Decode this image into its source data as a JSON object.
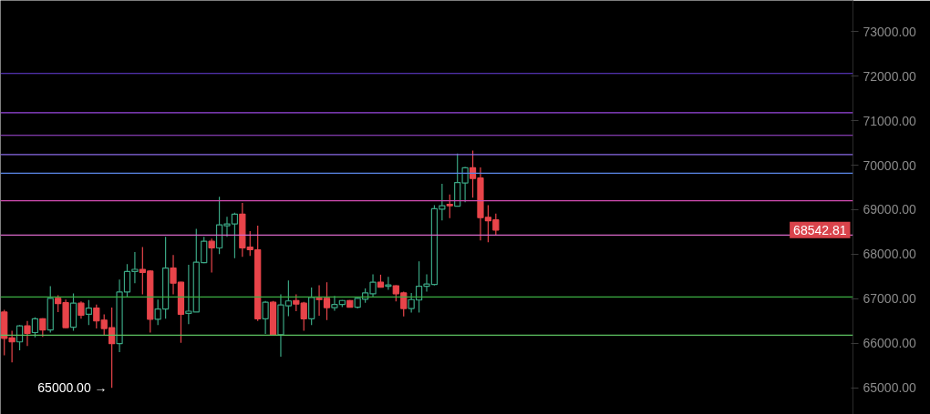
{
  "chart_data": {
    "type": "candlestick",
    "categories": [
      null,
      null,
      null,
      null,
      null,
      null,
      null,
      null,
      null,
      null,
      null,
      null,
      null,
      null,
      null,
      null,
      null,
      null,
      null,
      null,
      null,
      null,
      null,
      null,
      null,
      null,
      null,
      null,
      null,
      null,
      null,
      null,
      null,
      null,
      null,
      null,
      null,
      null,
      null,
      null,
      null,
      null,
      null,
      null,
      null,
      null,
      null,
      null,
      null,
      null,
      null,
      null,
      null,
      null,
      null,
      null,
      null,
      null,
      null,
      null,
      null,
      null,
      null,
      null,
      null,
      null,
      null,
      null,
      null,
      null,
      null,
      null,
      null,
      null,
      null,
      null,
      null,
      null,
      null,
      null,
      null,
      null,
      null,
      null,
      null,
      null,
      null,
      null,
      null,
      null,
      null,
      null,
      null,
      null,
      null,
      null,
      null,
      null,
      null,
      null,
      null,
      null,
      null,
      null,
      null,
      null,
      null,
      null,
      null,
      null,
      null
    ],
    "ohlc": [
      [
        66700,
        66750,
        65730,
        66110
      ],
      [
        66120,
        66280,
        65570,
        66030
      ],
      [
        66030,
        66410,
        65840,
        66390
      ],
      [
        66390,
        66500,
        65940,
        66220
      ],
      [
        66240,
        66580,
        66130,
        66550
      ],
      [
        66550,
        66560,
        66140,
        66300
      ],
      [
        66300,
        67280,
        66240,
        67010
      ],
      [
        67010,
        67080,
        66700,
        66890
      ],
      [
        66910,
        66980,
        66340,
        66350
      ],
      [
        66360,
        67120,
        66280,
        66900
      ],
      [
        66900,
        66940,
        66550,
        66630
      ],
      [
        66650,
        66970,
        66410,
        66790
      ],
      [
        66790,
        66870,
        66330,
        66500
      ],
      [
        66520,
        66650,
        66180,
        66330
      ],
      [
        66350,
        66800,
        65000,
        65990
      ],
      [
        65990,
        67430,
        65800,
        67150
      ],
      [
        67150,
        67780,
        67030,
        67610
      ],
      [
        67610,
        68050,
        67350,
        67660
      ],
      [
        67660,
        68160,
        67100,
        67590
      ],
      [
        67620,
        67640,
        66240,
        66540
      ],
      [
        66540,
        66980,
        66410,
        66770
      ],
      [
        66770,
        68390,
        66550,
        67690
      ],
      [
        67690,
        67980,
        67100,
        67350
      ],
      [
        67370,
        67380,
        66010,
        66650
      ],
      [
        66670,
        67760,
        66430,
        66720
      ],
      [
        66700,
        68570,
        66700,
        67820
      ],
      [
        67810,
        68390,
        67800,
        68290
      ],
      [
        68290,
        68350,
        67590,
        68140
      ],
      [
        68140,
        69290,
        68000,
        68660
      ],
      [
        68640,
        68840,
        68390,
        68680
      ],
      [
        68680,
        68930,
        67910,
        68900
      ],
      [
        68900,
        69150,
        67940,
        68140
      ],
      [
        68160,
        68520,
        67960,
        68100
      ],
      [
        68100,
        68640,
        66500,
        66550
      ],
      [
        66550,
        66950,
        66210,
        66920
      ],
      [
        66920,
        66950,
        66180,
        66190
      ],
      [
        66190,
        67100,
        65700,
        66860
      ],
      [
        66840,
        67410,
        66610,
        66950
      ],
      [
        66960,
        67100,
        66720,
        66880
      ],
      [
        66900,
        66930,
        66280,
        66550
      ],
      [
        66550,
        67250,
        66410,
        67030
      ],
      [
        67010,
        67300,
        66620,
        66980
      ],
      [
        67010,
        67370,
        66520,
        66800
      ],
      [
        66800,
        67060,
        66730,
        66870
      ],
      [
        66870,
        66970,
        66810,
        66960
      ],
      [
        66960,
        66970,
        66800,
        66810
      ],
      [
        66810,
        67020,
        66780,
        67010
      ],
      [
        66990,
        67230,
        66910,
        67130
      ],
      [
        67110,
        67550,
        67030,
        67370
      ],
      [
        67370,
        67540,
        67250,
        67260
      ],
      [
        67280,
        67490,
        67200,
        67310
      ],
      [
        67290,
        67300,
        66940,
        67110
      ],
      [
        67130,
        67160,
        66600,
        66780
      ],
      [
        66780,
        67130,
        66690,
        66980
      ],
      [
        66970,
        67840,
        66690,
        67280
      ],
      [
        67280,
        67550,
        67160,
        67330
      ],
      [
        67320,
        69100,
        67300,
        69020
      ],
      [
        69010,
        69580,
        68760,
        69090
      ],
      [
        69120,
        69340,
        68810,
        69090
      ],
      [
        69080,
        70260,
        69070,
        69610
      ],
      [
        69600,
        69960,
        69170,
        69940
      ],
      [
        69940,
        70330,
        69270,
        69700
      ],
      [
        69710,
        69950,
        68310,
        68820
      ],
      [
        68830,
        69100,
        68270,
        68750
      ],
      [
        68770,
        68910,
        68420,
        68542.81
      ],
      null,
      null,
      null,
      null,
      null,
      null,
      null,
      null,
      null,
      null,
      null,
      null,
      null,
      null,
      null,
      null,
      null,
      null,
      null,
      null,
      null,
      null,
      null,
      null,
      null,
      null,
      null,
      null,
      null,
      null,
      null,
      null,
      null,
      null,
      null,
      null,
      null,
      null,
      null,
      null,
      null,
      null,
      null,
      null,
      null,
      null
    ],
    "colors": [
      "#e8444a",
      "#e8444a",
      "#3aa583",
      "#e8444a",
      "#3aa583",
      "#e8444a",
      "#3aa583",
      "#e8444a",
      "#e8444a",
      "#3aa583",
      "#e8444a",
      "#3aa583",
      "#e8444a",
      "#e8444a",
      "#e8444a",
      "#3aa583",
      "#3aa583",
      "#3aa583",
      "#e8444a",
      "#e8444a",
      "#3aa583",
      "#3aa583",
      "#e8444a",
      "#e8444a",
      "#3aa583",
      "#3aa583",
      "#3aa583",
      "#e8444a",
      "#3aa583",
      "#3aa583",
      "#3aa583",
      "#e8444a",
      "#e8444a",
      "#e8444a",
      "#3aa583",
      "#e8444a",
      "#3aa583",
      "#3aa583",
      "#e8444a",
      "#e8444a",
      "#3aa583",
      "#e8444a",
      "#e8444a",
      "#3aa583",
      "#3aa583",
      "#e8444a",
      "#3aa583",
      "#3aa583",
      "#3aa583",
      "#e8444a",
      "#3aa583",
      "#e8444a",
      "#e8444a",
      "#3aa583",
      "#3aa583",
      "#3aa583",
      "#3aa583",
      "#3aa583",
      "#e8444a",
      "#3aa583",
      "#3aa583",
      "#e8444a",
      "#e8444a",
      "#e8444a",
      "#e8444a",
      null,
      null,
      null,
      null,
      null,
      null,
      null,
      null,
      null,
      null,
      null,
      null,
      null,
      null,
      null,
      null,
      null,
      null,
      null,
      null,
      null,
      null,
      null,
      null,
      null,
      null,
      null,
      null,
      null,
      null,
      null,
      null,
      null,
      null,
      null,
      null,
      null,
      null,
      null,
      null,
      null,
      null,
      null,
      null,
      null,
      null
    ],
    "ylim": [
      64400,
      73700
    ],
    "yticks": [
      {
        "value": 65000,
        "label": "65000.00"
      },
      {
        "value": 66000,
        "label": "66000.00"
      },
      {
        "value": 67000,
        "label": "67000.00"
      },
      {
        "value": 68000,
        "label": "68000.00"
      },
      {
        "value": 69000,
        "label": "69000.00"
      },
      {
        "value": 70000,
        "label": "70000.00"
      },
      {
        "value": 71000,
        "label": "71000.00"
      },
      {
        "value": 72000,
        "label": "72000.00"
      },
      {
        "value": 73000,
        "label": "73000.00"
      }
    ],
    "tick_labels": "y",
    "grid": false,
    "ref_lines": [
      {
        "axis": "y",
        "value": 72060,
        "color": "#6a40e0"
      },
      {
        "axis": "y",
        "value": 71180,
        "color": "#9a48e0"
      },
      {
        "axis": "y",
        "value": 70670,
        "color": "#a84ce0"
      },
      {
        "axis": "y",
        "value": 70240,
        "color": "#8a6ae8"
      },
      {
        "axis": "y",
        "value": 69820,
        "color": "#5a86e8"
      },
      {
        "axis": "y",
        "value": 69200,
        "color": "#d04cb0"
      },
      {
        "axis": "y",
        "value": 68430,
        "color": "#d868c8"
      },
      {
        "axis": "y",
        "value": 67040,
        "color": "#3cb043"
      },
      {
        "axis": "y",
        "value": 66180,
        "color": "#5cc060"
      }
    ],
    "annotations": [
      "65000.00 →",
      "68542.81"
    ]
  }
}
